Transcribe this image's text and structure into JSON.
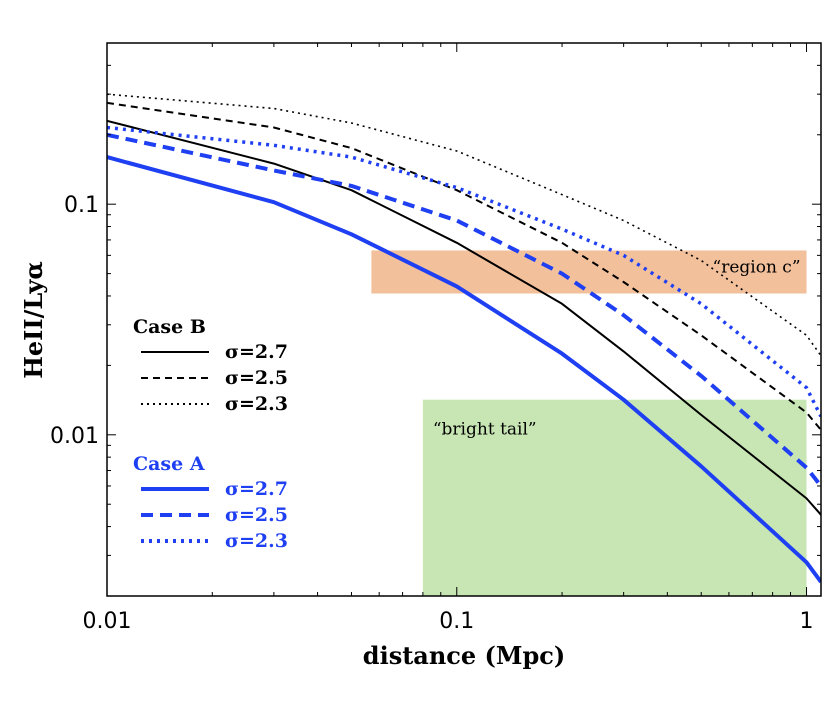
{
  "chart_data": {
    "type": "line",
    "xscale": "log",
    "yscale": "log",
    "xlim": [
      0.01,
      1.1
    ],
    "ylim": [
      0.002,
      0.5
    ],
    "xlabel": "distance (Mpc)",
    "ylabel": "HeII/Lyα",
    "xticks": [
      {
        "value": 0.01,
        "label": "0.01"
      },
      {
        "value": 0.1,
        "label": "0.1"
      },
      {
        "value": 1,
        "label": "1"
      }
    ],
    "yticks": [
      {
        "value": 0.01,
        "label": "0.01"
      },
      {
        "value": 0.1,
        "label": "0.1"
      }
    ],
    "regions": [
      {
        "name": "region-c",
        "label": "“region c”",
        "x": [
          0.057,
          1.0
        ],
        "y": [
          0.041,
          0.063
        ],
        "color": "#f2c09b"
      },
      {
        "name": "bright-tail",
        "label": "“bright tail”",
        "x": [
          0.08,
          1.0
        ],
        "y": [
          0.002,
          0.0142
        ],
        "color": "#c8e6b4"
      }
    ],
    "series": [
      {
        "group": "Case B",
        "name": "σ=2.7",
        "color": "#000000",
        "dash": "solid",
        "width": 2,
        "x": [
          0.01,
          0.03,
          0.05,
          0.1,
          0.2,
          0.3,
          0.5,
          1.0,
          1.1
        ],
        "y": [
          0.23,
          0.15,
          0.115,
          0.068,
          0.037,
          0.023,
          0.0122,
          0.0053,
          0.0045
        ]
      },
      {
        "group": "Case B",
        "name": "σ=2.5",
        "color": "#000000",
        "dash": "dashed",
        "width": 2,
        "x": [
          0.01,
          0.03,
          0.05,
          0.1,
          0.2,
          0.3,
          0.5,
          1.0,
          1.1
        ],
        "y": [
          0.275,
          0.215,
          0.175,
          0.115,
          0.068,
          0.046,
          0.027,
          0.0125,
          0.0105
        ]
      },
      {
        "group": "Case B",
        "name": "σ=2.3",
        "color": "#000000",
        "dash": "dotted",
        "width": 1.6,
        "x": [
          0.01,
          0.03,
          0.05,
          0.1,
          0.2,
          0.3,
          0.5,
          1.0,
          1.1
        ],
        "y": [
          0.3,
          0.26,
          0.225,
          0.17,
          0.11,
          0.085,
          0.057,
          0.027,
          0.022
        ]
      },
      {
        "group": "Case A",
        "name": "σ=2.7",
        "color": "#1f3ff2",
        "dash": "solid",
        "width": 4,
        "x": [
          0.01,
          0.03,
          0.05,
          0.1,
          0.2,
          0.3,
          0.5,
          1.0,
          1.1
        ],
        "y": [
          0.16,
          0.102,
          0.074,
          0.044,
          0.0225,
          0.0142,
          0.0073,
          0.0028,
          0.0023
        ]
      },
      {
        "group": "Case A",
        "name": "σ=2.5",
        "color": "#1f3ff2",
        "dash": "dashed",
        "width": 4,
        "x": [
          0.01,
          0.03,
          0.05,
          0.1,
          0.2,
          0.3,
          0.5,
          1.0,
          1.1
        ],
        "y": [
          0.2,
          0.14,
          0.12,
          0.085,
          0.05,
          0.033,
          0.018,
          0.0072,
          0.006
        ]
      },
      {
        "group": "Case A",
        "name": "σ=2.3",
        "color": "#1f3ff2",
        "dash": "dotted",
        "width": 3.5,
        "x": [
          0.01,
          0.03,
          0.05,
          0.1,
          0.2,
          0.3,
          0.5,
          1.0,
          1.1
        ],
        "y": [
          0.215,
          0.18,
          0.16,
          0.118,
          0.078,
          0.06,
          0.037,
          0.016,
          0.012
        ]
      }
    ],
    "legend": {
      "placement": "left",
      "groups": [
        {
          "title": "Case B",
          "color": "#000000",
          "entries": [
            {
              "label": "σ=2.7",
              "dash": "solid"
            },
            {
              "label": "σ=2.5",
              "dash": "dashed"
            },
            {
              "label": "σ=2.3",
              "dash": "dotted"
            }
          ]
        },
        {
          "title": "Case A",
          "color": "#1f3ff2",
          "entries": [
            {
              "label": "σ=2.7",
              "dash": "solid"
            },
            {
              "label": "σ=2.5",
              "dash": "dashed"
            },
            {
              "label": "σ=2.3",
              "dash": "dotted"
            }
          ]
        }
      ]
    }
  }
}
